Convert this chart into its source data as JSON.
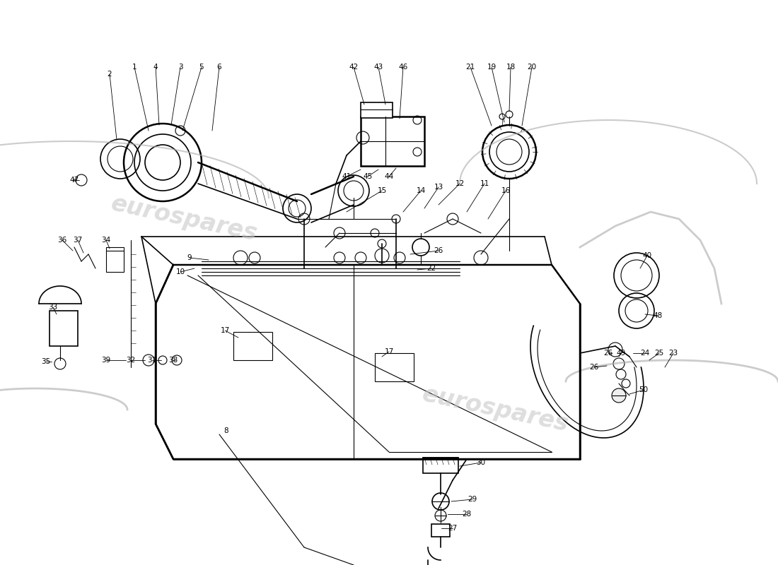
{
  "bg_color": "#ffffff",
  "line_color": "#000000",
  "fig_width": 11.0,
  "fig_height": 8.0,
  "dpi": 100,
  "watermark": "eurospares",
  "wm_color": "#c8c8c8",
  "lw_thin": 0.8,
  "lw_med": 1.2,
  "lw_thick": 1.8
}
